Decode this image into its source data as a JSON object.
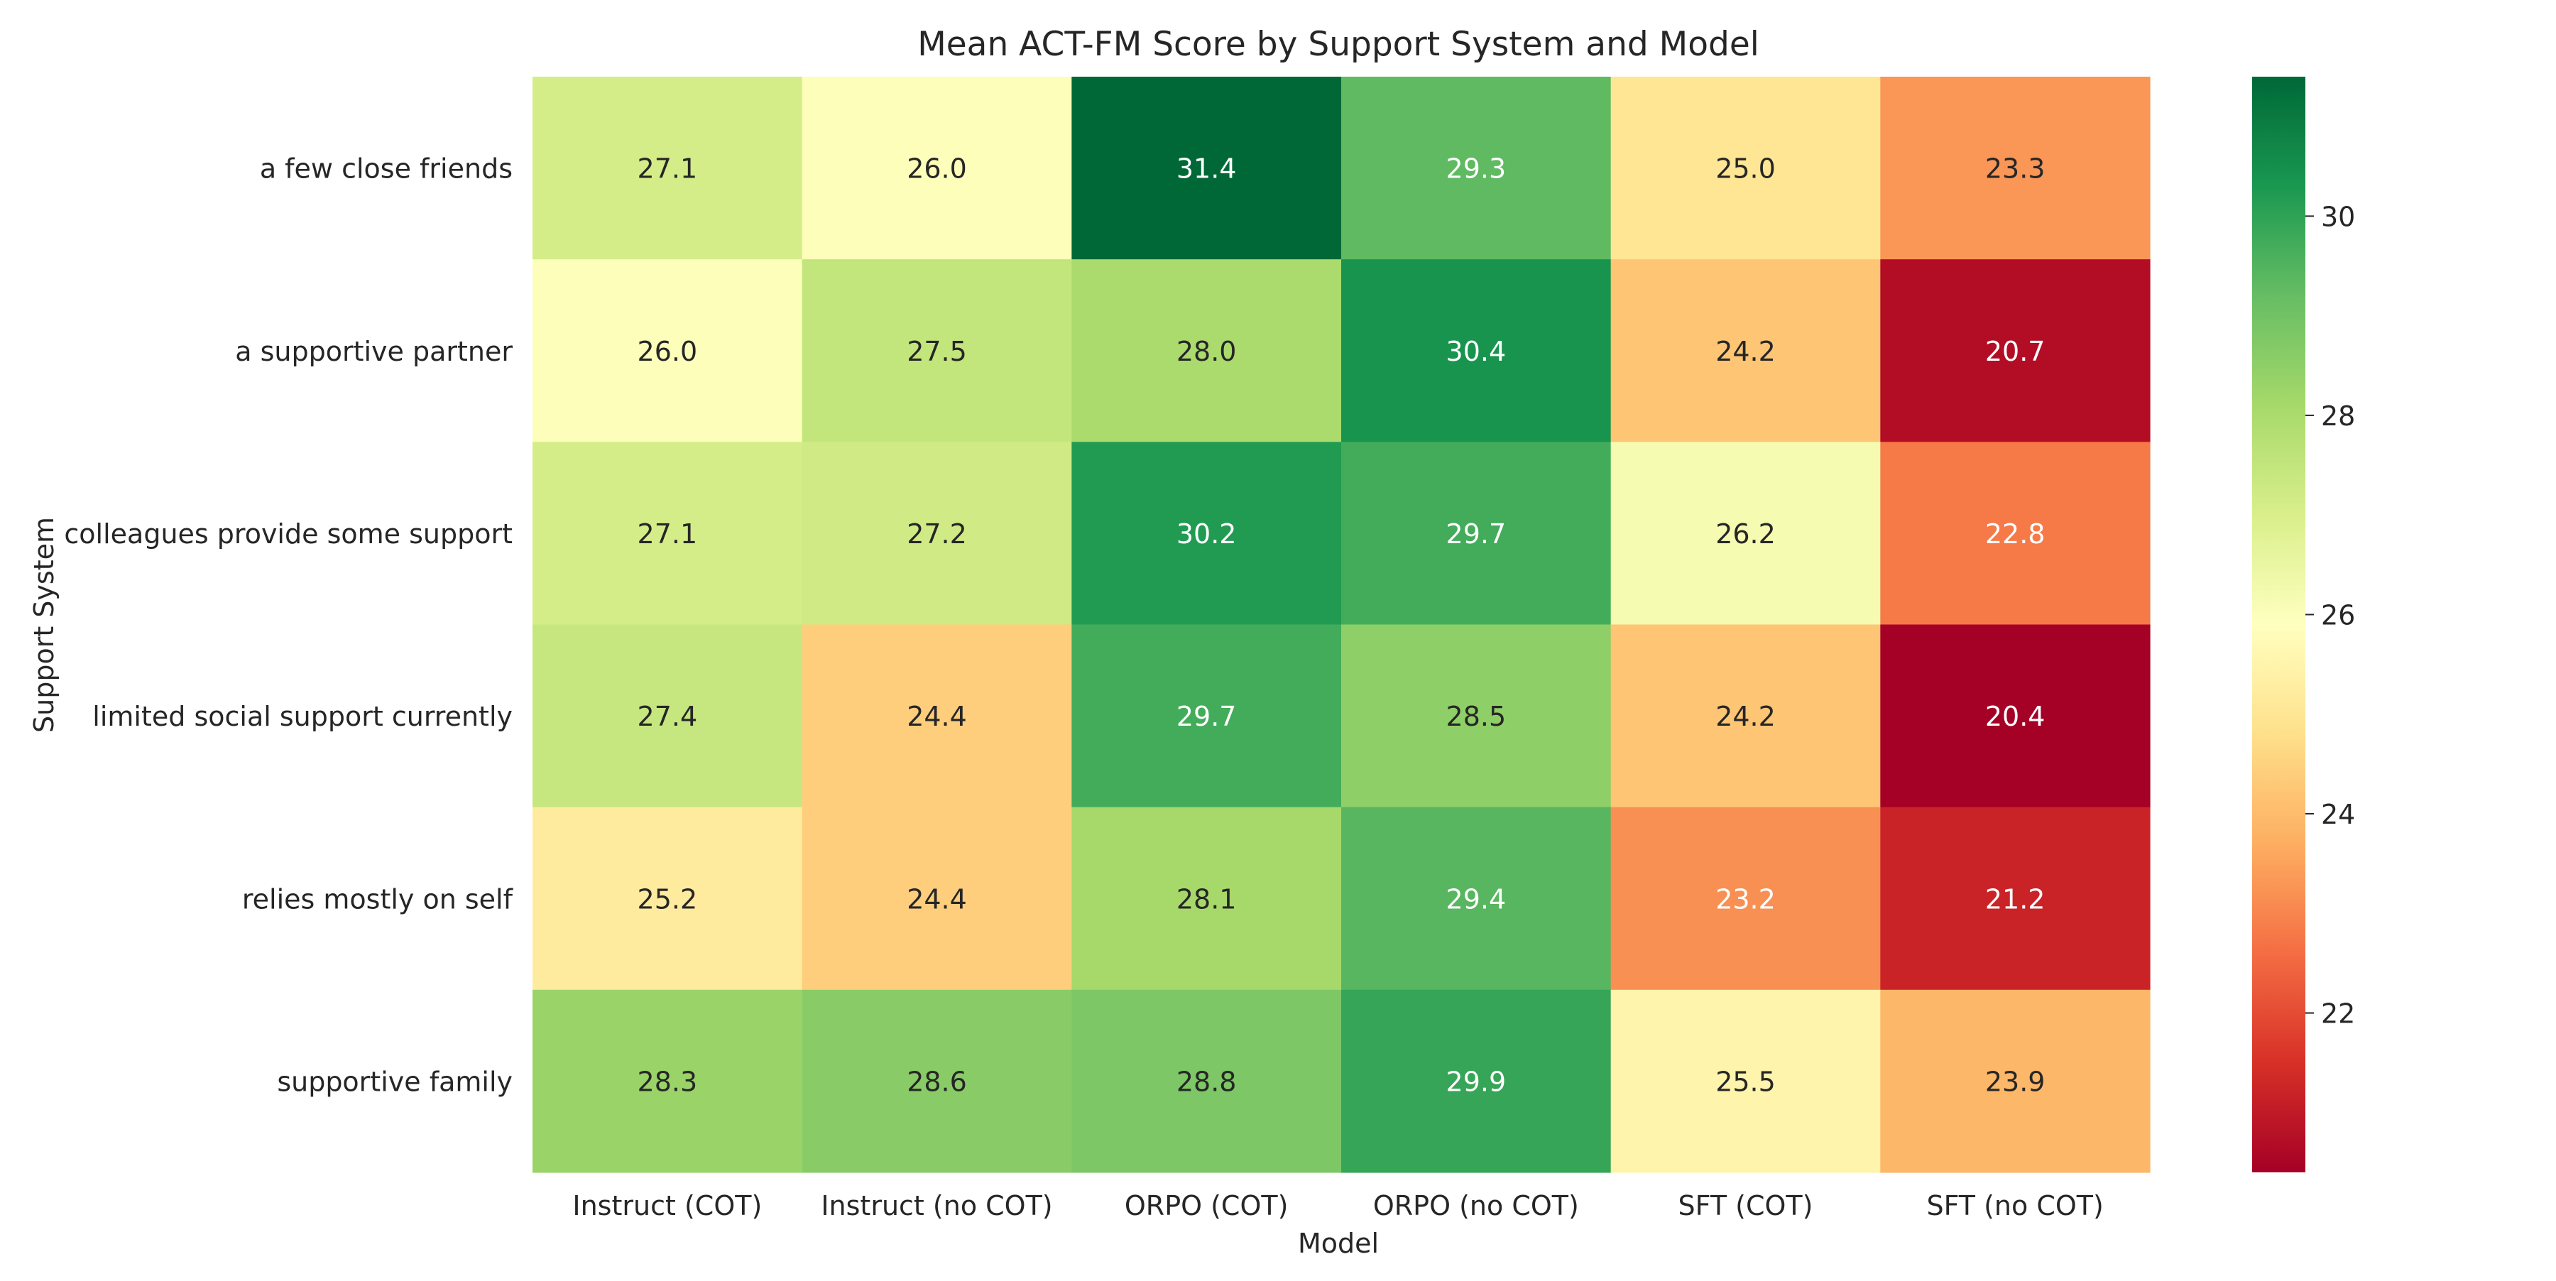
{
  "chart_data": {
    "type": "heatmap",
    "title": "Mean ACT-FM Score by Support System and Model",
    "xlabel": "Model",
    "ylabel": "Support System",
    "x_categories": [
      "Instruct (COT)",
      "Instruct (no COT)",
      "ORPO (COT)",
      "ORPO (no COT)",
      "SFT (COT)",
      "SFT (no COT)"
    ],
    "y_categories": [
      "a few close friends",
      "a supportive partner",
      "colleagues provide some support",
      "limited social support currently",
      "relies mostly on self",
      "supportive family"
    ],
    "values": [
      [
        27.1,
        26.0,
        31.4,
        29.3,
        25.0,
        23.3
      ],
      [
        26.0,
        27.5,
        28.0,
        30.4,
        24.2,
        20.7
      ],
      [
        27.1,
        27.2,
        30.2,
        29.7,
        26.2,
        22.8
      ],
      [
        27.4,
        24.4,
        29.7,
        28.5,
        24.2,
        20.4
      ],
      [
        25.2,
        24.4,
        28.1,
        29.4,
        23.2,
        21.2
      ],
      [
        28.3,
        28.6,
        28.8,
        29.9,
        25.5,
        23.9
      ]
    ],
    "colormap": "RdYlGn",
    "colorbar": {
      "range": [
        20.4,
        31.4
      ],
      "ticks": [
        22,
        24,
        26,
        28,
        30
      ]
    },
    "annotation_format": "0.1f"
  }
}
